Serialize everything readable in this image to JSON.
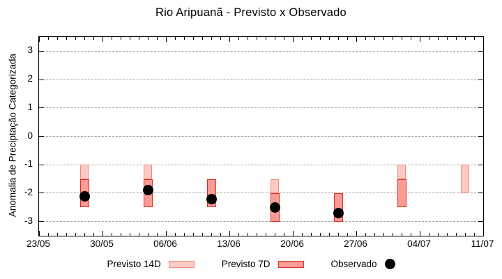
{
  "page": {
    "background": "#ffffff"
  },
  "chart_data": {
    "type": "bar",
    "subtype": "range-bars-with-observed-points",
    "title": "Rio Aripuanã - Previsto x Observado",
    "ylabel": "Anomalia de Preciptação Categorizada",
    "xlabel": "",
    "ylim": [
      -3.5,
      3.5
    ],
    "yticks": [
      3,
      2,
      1,
      0,
      -1,
      -2,
      -3
    ],
    "grid": true,
    "grid_color": "#9e9e9e",
    "legend_position": "bottom",
    "x_axis": {
      "tick_labels": [
        "23/05",
        "30/05",
        "06/06",
        "13/06",
        "20/06",
        "27/06",
        "04/07",
        "11/07"
      ],
      "tick_days": [
        0,
        7,
        14,
        21,
        28,
        35,
        42,
        49
      ],
      "total_days": 49,
      "minor_tick_every_days": 1
    },
    "series": [
      {
        "name": "Previsto 14D",
        "kind": "range-bar",
        "fill": "#fbcac4",
        "border": "#f08a7a",
        "bars": [
          {
            "date": "28/05",
            "day": 5,
            "high": -1.0,
            "low": -1.5
          },
          {
            "date": "04/06",
            "day": 12,
            "high": -1.0,
            "low": -1.5
          },
          {
            "date": "18/06",
            "day": 26,
            "high": -1.5,
            "low": -2.0
          },
          {
            "date": "02/07",
            "day": 40,
            "high": -1.0,
            "low": -1.5
          },
          {
            "date": "09/07",
            "day": 47,
            "high": -1.0,
            "low": -2.0
          }
        ]
      },
      {
        "name": "Previsto 7D",
        "kind": "range-bar",
        "fill": "#f79d95",
        "border": "#e12b24",
        "bars": [
          {
            "date": "28/05",
            "day": 5,
            "high": -1.5,
            "low": -2.5
          },
          {
            "date": "04/06",
            "day": 12,
            "high": -1.5,
            "low": -2.5
          },
          {
            "date": "11/06",
            "day": 19,
            "high": -1.5,
            "low": -2.5
          },
          {
            "date": "18/06",
            "day": 26,
            "high": -2.0,
            "low": -3.0
          },
          {
            "date": "25/06",
            "day": 33,
            "high": -2.0,
            "low": -3.0
          },
          {
            "date": "02/07",
            "day": 40,
            "high": -1.5,
            "low": -2.5
          }
        ]
      },
      {
        "name": "Observado",
        "kind": "point",
        "fill": "#000000",
        "points": [
          {
            "date": "28/05",
            "day": 5,
            "value": -2.1
          },
          {
            "date": "04/06",
            "day": 12,
            "value": -1.9
          },
          {
            "date": "11/06",
            "day": 19,
            "value": -2.2
          },
          {
            "date": "18/06",
            "day": 26,
            "value": -2.5
          },
          {
            "date": "25/06",
            "day": 33,
            "value": -2.7
          }
        ]
      }
    ]
  }
}
